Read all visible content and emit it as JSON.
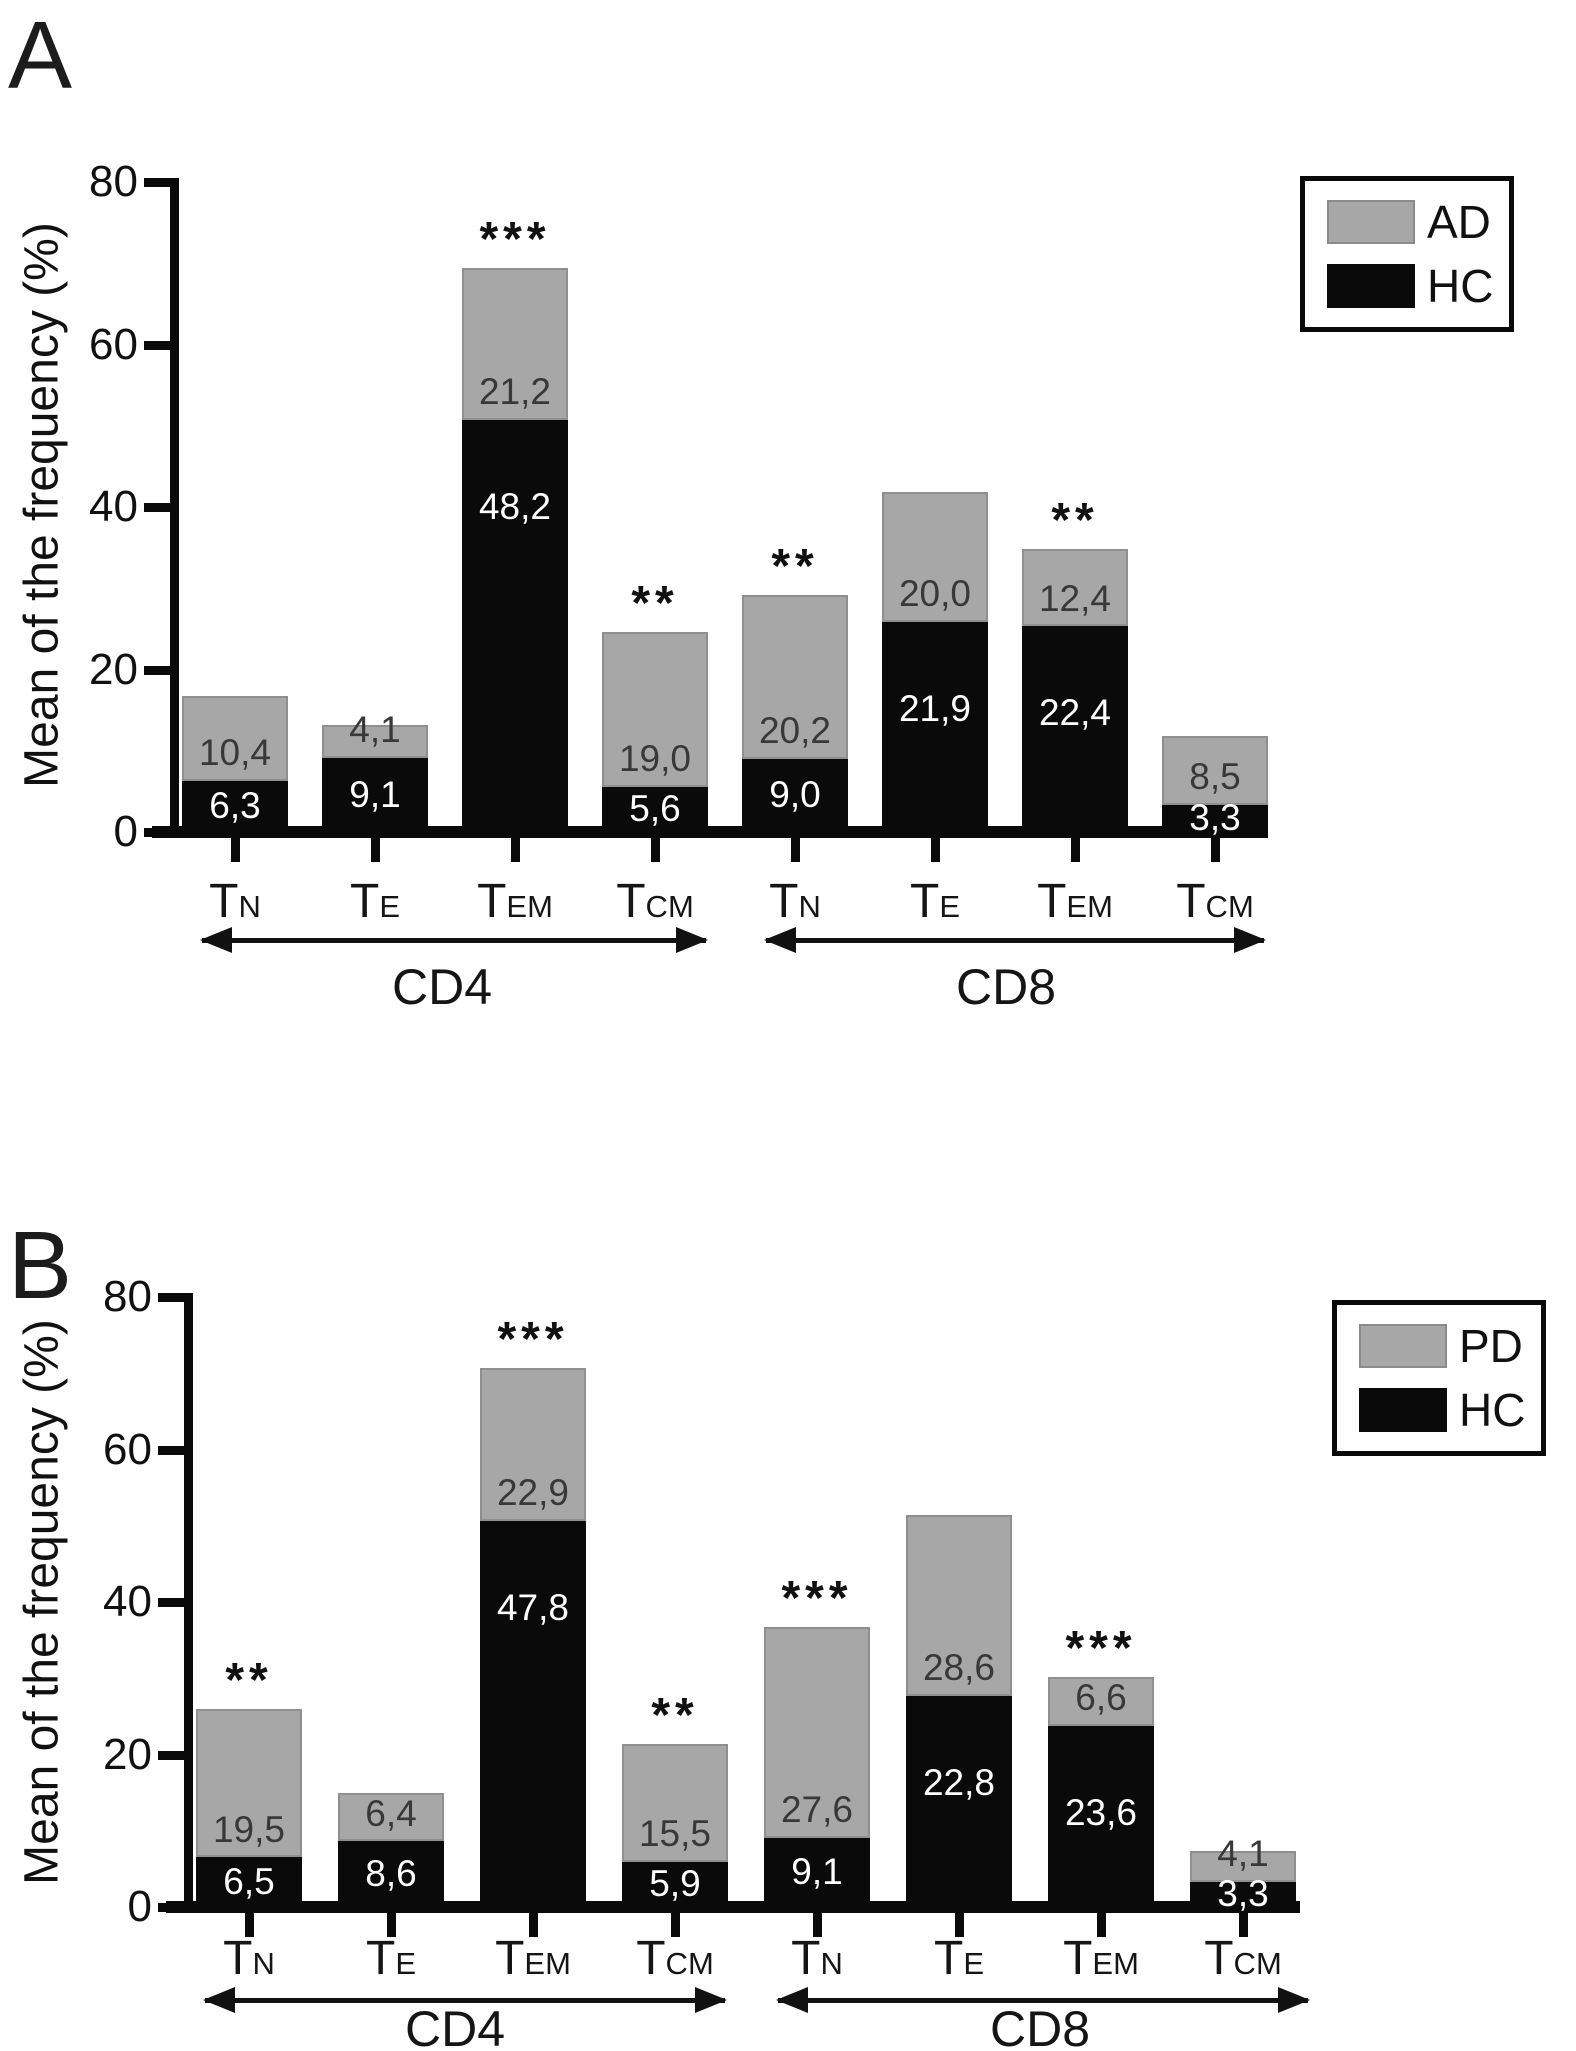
{
  "chart_data": [
    {
      "panel_label": "A",
      "type": "stacked-bar",
      "ylabel": "Mean of the frequency (%)",
      "ylim": [
        0,
        80
      ],
      "yticks": [
        "0",
        "20",
        "40",
        "60",
        "80"
      ],
      "grid": false,
      "legend": {
        "position": "top-right",
        "entries": [
          {
            "name": "AD",
            "color": "#a7a7a7"
          },
          {
            "name": "HC",
            "color": "#0a0a0a"
          }
        ]
      },
      "series_names": {
        "top": "AD",
        "bottom": "HC"
      },
      "groups": [
        {
          "name": "CD4",
          "bars": [
            {
              "category_main": "T",
              "category_sub": "N",
              "bottom_value": 6.3,
              "bottom_label": "6,3",
              "top_value": 10.4,
              "top_label": "10,4",
              "significance": ""
            },
            {
              "category_main": "T",
              "category_sub": "E",
              "bottom_value": 9.1,
              "bottom_label": "9,1",
              "top_value": 4.1,
              "top_label": "4,1",
              "significance": ""
            },
            {
              "category_main": "T",
              "category_sub": "EM",
              "bottom_value": 48.2,
              "bottom_label": "48,2",
              "top_value": 21.2,
              "top_label": "21,2",
              "significance": "***"
            },
            {
              "category_main": "T",
              "category_sub": "CM",
              "bottom_value": 5.6,
              "bottom_label": "5,6",
              "top_value": 19.0,
              "top_label": "19,0",
              "significance": "**"
            }
          ]
        },
        {
          "name": "CD8",
          "bars": [
            {
              "category_main": "T",
              "category_sub": "N",
              "bottom_value": 9.0,
              "bottom_label": "9,0",
              "top_value": 20.2,
              "top_label": "20,2",
              "significance": "**"
            },
            {
              "category_main": "T",
              "category_sub": "E",
              "bottom_value": 21.9,
              "bottom_label": "21,9",
              "top_value": 20.0,
              "top_label": "20,0",
              "significance": ""
            },
            {
              "category_main": "T",
              "category_sub": "EM",
              "bottom_value": 22.4,
              "bottom_label": "22,4",
              "top_value": 12.4,
              "top_label": "12,4",
              "significance": "**"
            },
            {
              "category_main": "T",
              "category_sub": "CM",
              "bottom_value": 3.3,
              "bottom_label": "3,3",
              "top_value": 8.5,
              "top_label": "8,5",
              "significance": ""
            }
          ]
        }
      ]
    },
    {
      "panel_label": "B",
      "type": "stacked-bar",
      "ylabel": "Mean of the frequency (%)",
      "ylim": [
        0,
        80
      ],
      "yticks": [
        "0",
        "20",
        "40",
        "60",
        "80"
      ],
      "grid": false,
      "legend": {
        "position": "top-right",
        "entries": [
          {
            "name": "PD",
            "color": "#a7a7a7"
          },
          {
            "name": "HC",
            "color": "#0a0a0a"
          }
        ]
      },
      "series_names": {
        "top": "PD",
        "bottom": "HC"
      },
      "groups": [
        {
          "name": "CD4",
          "bars": [
            {
              "category_main": "T",
              "category_sub": "N",
              "bottom_value": 6.5,
              "bottom_label": "6,5",
              "top_value": 19.5,
              "top_label": "19,5",
              "significance": "**"
            },
            {
              "category_main": "T",
              "category_sub": "E",
              "bottom_value": 8.6,
              "bottom_label": "8,6",
              "top_value": 6.4,
              "top_label": "6,4",
              "significance": ""
            },
            {
              "category_main": "T",
              "category_sub": "EM",
              "bottom_value": 47.8,
              "bottom_label": "47,8",
              "top_value": 22.9,
              "top_label": "22,9",
              "significance": "***"
            },
            {
              "category_main": "T",
              "category_sub": "CM",
              "bottom_value": 5.9,
              "bottom_label": "5,9",
              "top_value": 15.5,
              "top_label": "15,5",
              "significance": "**"
            }
          ]
        },
        {
          "name": "CD8",
          "bars": [
            {
              "category_main": "T",
              "category_sub": "N",
              "bottom_value": 9.1,
              "bottom_label": "9,1",
              "top_value": 27.6,
              "top_label": "27,6",
              "significance": "***"
            },
            {
              "category_main": "T",
              "category_sub": "E",
              "bottom_value": 22.8,
              "bottom_label": "22,8",
              "top_value": 28.6,
              "top_label": "28,6",
              "significance": ""
            },
            {
              "category_main": "T",
              "category_sub": "EM",
              "bottom_value": 23.6,
              "bottom_label": "23,6",
              "top_value": 6.6,
              "top_label": "6,6",
              "significance": "***"
            },
            {
              "category_main": "T",
              "category_sub": "CM",
              "bottom_value": 3.3,
              "bottom_label": "3,3",
              "top_value": 4.1,
              "top_label": "4,1",
              "significance": ""
            }
          ]
        }
      ]
    }
  ],
  "colors": {
    "top_fill": "#a7a7a7",
    "bottom_fill": "#0a0a0a",
    "label_on_top": "#383838",
    "label_on_bottom": "#ffffff"
  }
}
